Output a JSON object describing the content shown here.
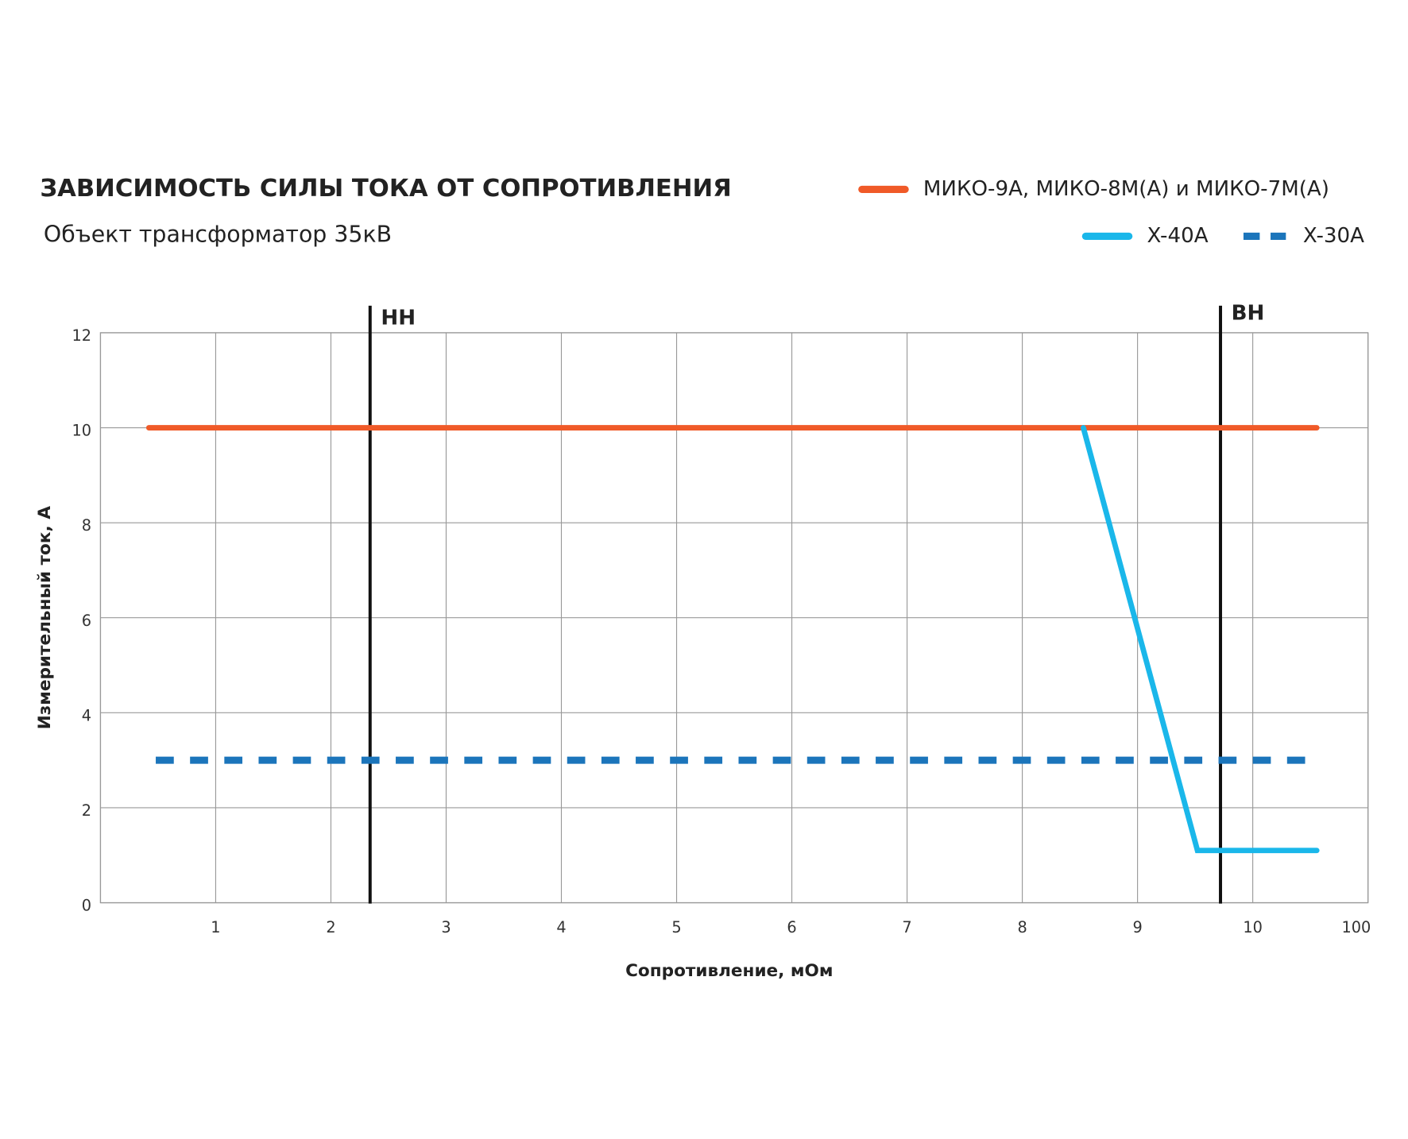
{
  "chart_data": {
    "type": "line",
    "title": "ЗАВИСИМОСТЬ СИЛЫ ТОКА ОТ СОПРОТИВЛЕНИЯ",
    "subtitle": "Объект трансформатор 35кВ",
    "x_label": "Сопротивление, мОм",
    "y_label": "Измерительный ток, А",
    "xscale": "evenly-spaced-ticks",
    "xlim": [
      0,
      100
    ],
    "xticks": [
      1,
      2,
      3,
      4,
      5,
      6,
      7,
      8,
      9,
      10,
      100
    ],
    "ylim": [
      0,
      12
    ],
    "yticks": [
      0,
      2,
      4,
      6,
      8,
      10,
      12
    ],
    "grid": true,
    "legend": "top-right",
    "series": [
      {
        "name": "МИКО-9А, МИКО-8М(А) и МИКО-7М(А)",
        "color": "#f05a28",
        "style": "solid",
        "x": [
          0.42,
          60
        ],
        "values": [
          10,
          10
        ]
      },
      {
        "name": "X-40A",
        "color": "#1ab7ea",
        "style": "solid",
        "x": [
          8.53,
          9.52,
          60
        ],
        "values": [
          10,
          1.1,
          1.1
        ]
      },
      {
        "name": "X-30A",
        "color": "#1b75bb",
        "style": "dashed",
        "x": [
          0.48,
          60
        ],
        "values": [
          3,
          3
        ]
      }
    ],
    "vlines": [
      {
        "x": 2.34,
        "label": "НН"
      },
      {
        "x": 9.72,
        "label": "ВН"
      }
    ]
  }
}
